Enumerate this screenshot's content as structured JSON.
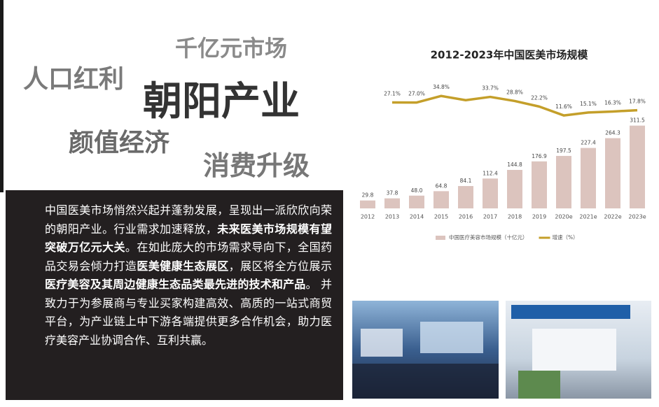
{
  "headline": {
    "words": [
      "千亿元市场",
      "人口红利",
      "朝阳产业",
      "颜值经济",
      "消费升级"
    ]
  },
  "intro": {
    "segments": [
      {
        "text": "中国医美市场悄然兴起并蓬勃发展，呈现出一派欣欣向荣的朝阳产业。行业需求加速释放，",
        "bold": false
      },
      {
        "text": "未来医美市场规模有望突破万亿元大关",
        "bold": true
      },
      {
        "text": "。在如此庞大的市场需求导向下，全国药品交易会倾力打造",
        "bold": false
      },
      {
        "text": "医美健康生态展区",
        "bold": true
      },
      {
        "text": "，展区将全方位展示",
        "bold": false
      },
      {
        "text": "医疗美容及其周边健康生态品类最先进的技术和产品",
        "bold": true
      },
      {
        "text": "。 并致力于为参展商与专业买家构建高效、高质的一站式商贸平台，为产业链上中下游各端提供更多合作机会，助力医疗美容产业协调合作、互利共赢。",
        "bold": false
      }
    ]
  },
  "chart_data": {
    "type": "bar",
    "title": "2012-2023年中国医美市场规模",
    "categories": [
      "2012",
      "2013",
      "2014",
      "2015",
      "2016",
      "2017",
      "2018",
      "2019",
      "2020e",
      "2021e",
      "2022e",
      "2023e"
    ],
    "series": [
      {
        "name": "中国医疗美容市场规模（十亿元）",
        "type": "bar",
        "color": "#dcc4be",
        "values": [
          29.8,
          37.8,
          48.0,
          64.8,
          84.1,
          112.4,
          144.8,
          176.9,
          197.5,
          227.4,
          264.3,
          311.5
        ],
        "value_labels": [
          "29.8",
          "37.8",
          "48.0",
          "64.8",
          "84.1",
          "112.4",
          "144.8",
          "176.9",
          "197.5",
          "227.4",
          "264.3",
          "311.5"
        ]
      },
      {
        "name": "增速（%）",
        "type": "line",
        "axis": "y2",
        "color": "#c49f2a",
        "values": [
          null,
          27.1,
          27.0,
          34.8,
          29.8,
          33.7,
          28.8,
          22.2,
          11.6,
          15.1,
          16.3,
          17.8
        ],
        "value_labels": [
          null,
          "27.1%",
          "27.0%",
          "34.8%",
          null,
          "33.7%",
          "28.8%",
          "22.2%",
          "11.6%",
          "15.1%",
          "16.3%",
          "17.8%"
        ]
      }
    ],
    "ylim": [
      0,
      350
    ],
    "y2lim": [
      0,
      40
    ],
    "legend": "bottom"
  }
}
